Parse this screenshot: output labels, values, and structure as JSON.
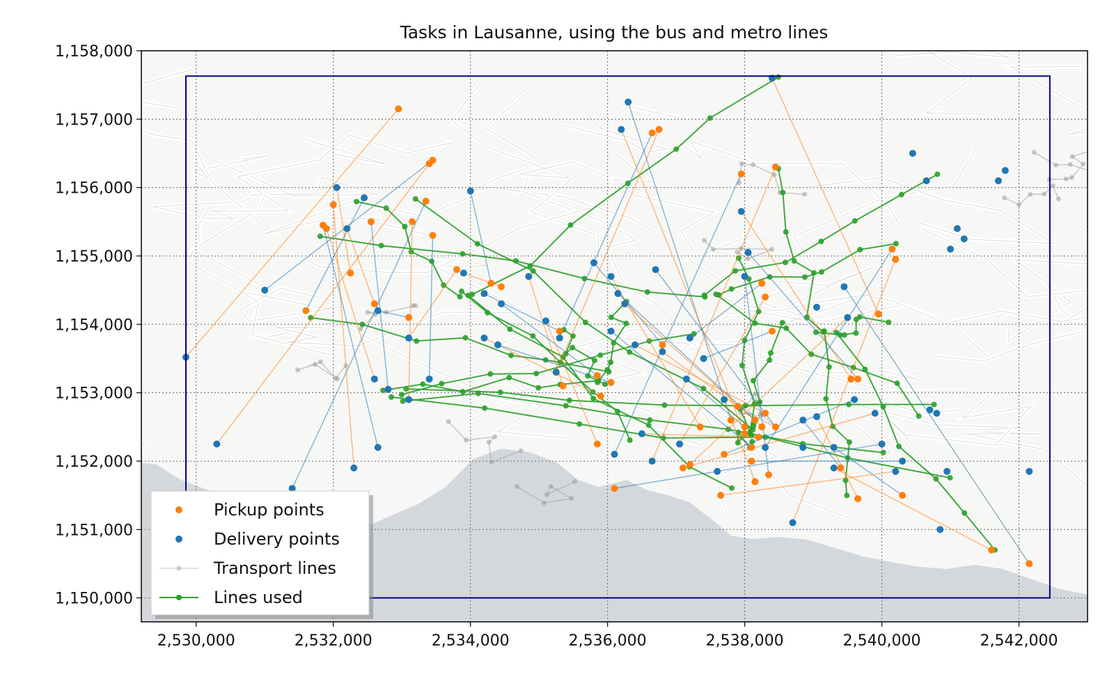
{
  "chart_data": {
    "type": "scatter",
    "title": "Tasks in Lausanne, using the bus and metro lines",
    "xlabel": "",
    "ylabel": "",
    "xlim": [
      2529200,
      2543000
    ],
    "ylim": [
      1149650,
      1158000
    ],
    "x_ticks": [
      2530000,
      2532000,
      2534000,
      2536000,
      2538000,
      2540000,
      2542000
    ],
    "y_ticks": [
      1150000,
      1151000,
      1152000,
      1153000,
      1154000,
      1155000,
      1156000,
      1157000,
      1158000
    ],
    "x_tick_labels": [
      "2,530,000",
      "2,532,000",
      "2,534,000",
      "2,536,000",
      "2,538,000",
      "2,540,000",
      "2,542,000"
    ],
    "y_tick_labels": [
      "1,150,000",
      "1,151,000",
      "1,152,000",
      "1,153,000",
      "1,154,000",
      "1,155,000",
      "1,156,000",
      "1,157,000",
      "1,158,000"
    ],
    "grid": true,
    "legend_position": "lower-left",
    "legend": [
      {
        "label": "Pickup points",
        "marker": "dot",
        "color": "#ff7f0e"
      },
      {
        "label": "Delivery points",
        "marker": "dot",
        "color": "#1f77b4"
      },
      {
        "label": "Transport lines",
        "marker": "line-dot",
        "color": "#cccccc"
      },
      {
        "label": "Lines used",
        "marker": "line-dot",
        "color": "#2ca02c"
      }
    ],
    "colors": {
      "pickup": "#ff7f0e",
      "delivery": "#1f77b4",
      "lines_used": "#2ca02c",
      "transport": "#b0b0b0",
      "bbox": "#000080",
      "lake": "#d4d8dc"
    },
    "bounding_rectangle": {
      "x": [
        2529850,
        2542450
      ],
      "y": [
        1150000,
        1157630
      ]
    },
    "series": [
      {
        "name": "Pickup points",
        "points": [
          [
            2532950,
            1157150
          ],
          [
            2533450,
            1156400
          ],
          [
            2533400,
            1156350
          ],
          [
            2533350,
            1155800
          ],
          [
            2532000,
            1155750
          ],
          [
            2531850,
            1155450
          ],
          [
            2531900,
            1155400
          ],
          [
            2532550,
            1155500
          ],
          [
            2533150,
            1155500
          ],
          [
            2533450,
            1155300
          ],
          [
            2532250,
            1154750
          ],
          [
            2531600,
            1154200
          ],
          [
            2532600,
            1154300
          ],
          [
            2533100,
            1154100
          ],
          [
            2533800,
            1154800
          ],
          [
            2534300,
            1154600
          ],
          [
            2534450,
            1154550
          ],
          [
            2535300,
            1153900
          ],
          [
            2535350,
            1153100
          ],
          [
            2535850,
            1153250
          ],
          [
            2535900,
            1152950
          ],
          [
            2536050,
            1153150
          ],
          [
            2535850,
            1152250
          ],
          [
            2536650,
            1156800
          ],
          [
            2536750,
            1156850
          ],
          [
            2536800,
            1153700
          ],
          [
            2537350,
            1152500
          ],
          [
            2537800,
            1152600
          ],
          [
            2538000,
            1152400
          ],
          [
            2538150,
            1152600
          ],
          [
            2538250,
            1152500
          ],
          [
            2538100,
            1152200
          ],
          [
            2538300,
            1152700
          ],
          [
            2538450,
            1152500
          ],
          [
            2537900,
            1152800
          ],
          [
            2538000,
            1152500
          ],
          [
            2538200,
            1152350
          ],
          [
            2537950,
            1156200
          ],
          [
            2538450,
            1156300
          ],
          [
            2538250,
            1154600
          ],
          [
            2538300,
            1154400
          ],
          [
            2538400,
            1153900
          ],
          [
            2538150,
            1151700
          ],
          [
            2538350,
            1151800
          ],
          [
            2539550,
            1153200
          ],
          [
            2539650,
            1153200
          ],
          [
            2539950,
            1154150
          ],
          [
            2540150,
            1155100
          ],
          [
            2540200,
            1154950
          ],
          [
            2539400,
            1151900
          ],
          [
            2539650,
            1151450
          ],
          [
            2540300,
            1151500
          ],
          [
            2541600,
            1150700
          ],
          [
            2542150,
            1150500
          ],
          [
            2537200,
            1151950
          ],
          [
            2537700,
            1152100
          ],
          [
            2537100,
            1151900
          ],
          [
            2536100,
            1151600
          ],
          [
            2537650,
            1151500
          ],
          [
            2538100,
            1152000
          ]
        ]
      },
      {
        "name": "Delivery points",
        "points": [
          [
            2529850,
            1153520
          ],
          [
            2531000,
            1154500
          ],
          [
            2530300,
            1152250
          ],
          [
            2531400,
            1151600
          ],
          [
            2532300,
            1151900
          ],
          [
            2532650,
            1152200
          ],
          [
            2532600,
            1153200
          ],
          [
            2532800,
            1153050
          ],
          [
            2533100,
            1152900
          ],
          [
            2533400,
            1153200
          ],
          [
            2532050,
            1156000
          ],
          [
            2532450,
            1155850
          ],
          [
            2532200,
            1155400
          ],
          [
            2532650,
            1154200
          ],
          [
            2533100,
            1153800
          ],
          [
            2534000,
            1155950
          ],
          [
            2533900,
            1154750
          ],
          [
            2534200,
            1154450
          ],
          [
            2534850,
            1154700
          ],
          [
            2534450,
            1154300
          ],
          [
            2534200,
            1153800
          ],
          [
            2534400,
            1153700
          ],
          [
            2535100,
            1154050
          ],
          [
            2535300,
            1153800
          ],
          [
            2535250,
            1153300
          ],
          [
            2535800,
            1154900
          ],
          [
            2536050,
            1154700
          ],
          [
            2536300,
            1157250
          ],
          [
            2536200,
            1156850
          ],
          [
            2536150,
            1154450
          ],
          [
            2536250,
            1154300
          ],
          [
            2536050,
            1153900
          ],
          [
            2536400,
            1153700
          ],
          [
            2536700,
            1154800
          ],
          [
            2536800,
            1153600
          ],
          [
            2537150,
            1153200
          ],
          [
            2536500,
            1152400
          ],
          [
            2536100,
            1152100
          ],
          [
            2536650,
            1152000
          ],
          [
            2537200,
            1153800
          ],
          [
            2537050,
            1152250
          ],
          [
            2537400,
            1153500
          ],
          [
            2537700,
            1152900
          ],
          [
            2538000,
            1154700
          ],
          [
            2537950,
            1155650
          ],
          [
            2538050,
            1155050
          ],
          [
            2538400,
            1157600
          ],
          [
            2538300,
            1152200
          ],
          [
            2538700,
            1151100
          ],
          [
            2538850,
            1152600
          ],
          [
            2539050,
            1152650
          ],
          [
            2539300,
            1152200
          ],
          [
            2539300,
            1151900
          ],
          [
            2539450,
            1154550
          ],
          [
            2539500,
            1154100
          ],
          [
            2539600,
            1152900
          ],
          [
            2539900,
            1152700
          ],
          [
            2540000,
            1152250
          ],
          [
            2540200,
            1151850
          ],
          [
            2540300,
            1152000
          ],
          [
            2540450,
            1156500
          ],
          [
            2540650,
            1156100
          ],
          [
            2540700,
            1152750
          ],
          [
            2540800,
            1152700
          ],
          [
            2541000,
            1155100
          ],
          [
            2541100,
            1155400
          ],
          [
            2541200,
            1155250
          ],
          [
            2541700,
            1156100
          ],
          [
            2541800,
            1156250
          ],
          [
            2540850,
            1151000
          ],
          [
            2540950,
            1151850
          ],
          [
            2542150,
            1151850
          ],
          [
            2539050,
            1154250
          ],
          [
            2537600,
            1151850
          ],
          [
            2538850,
            1152200
          ]
        ]
      }
    ]
  }
}
